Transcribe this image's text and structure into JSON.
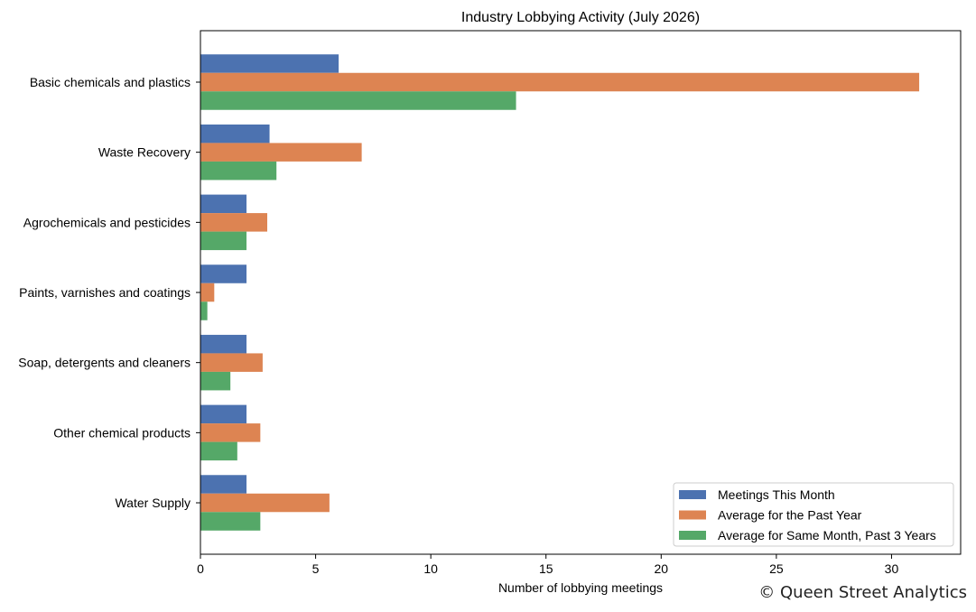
{
  "chart_data": {
    "type": "bar",
    "orientation": "horizontal",
    "title": "Industry Lobbying Activity (July 2026)",
    "xlabel": "Number of lobbying meetings",
    "ylabel": "",
    "xlim": [
      0,
      33
    ],
    "xticks": [
      0,
      5,
      10,
      15,
      20,
      25,
      30
    ],
    "categories": [
      "Basic chemicals and plastics",
      "Waste Recovery",
      "Agrochemicals and pesticides",
      "Paints, varnishes and coatings",
      "Soap, detergents and cleaners",
      "Other chemical products",
      "Water Supply"
    ],
    "series": [
      {
        "name": "Meetings This Month",
        "color": "#4c72b0",
        "values": [
          6,
          3,
          2,
          2,
          2,
          2,
          2
        ]
      },
      {
        "name": "Average for the Past Year",
        "color": "#dd8452",
        "values": [
          31.2,
          7.0,
          2.9,
          0.6,
          2.7,
          2.6,
          5.6
        ]
      },
      {
        "name": "Average for Same Month, Past 3 Years",
        "color": "#55a868",
        "values": [
          13.7,
          3.3,
          2.0,
          0.3,
          1.3,
          1.6,
          2.6
        ]
      }
    ],
    "grid": false,
    "legend_position": "lower-right"
  },
  "watermark": "© Queen Street Analytics"
}
